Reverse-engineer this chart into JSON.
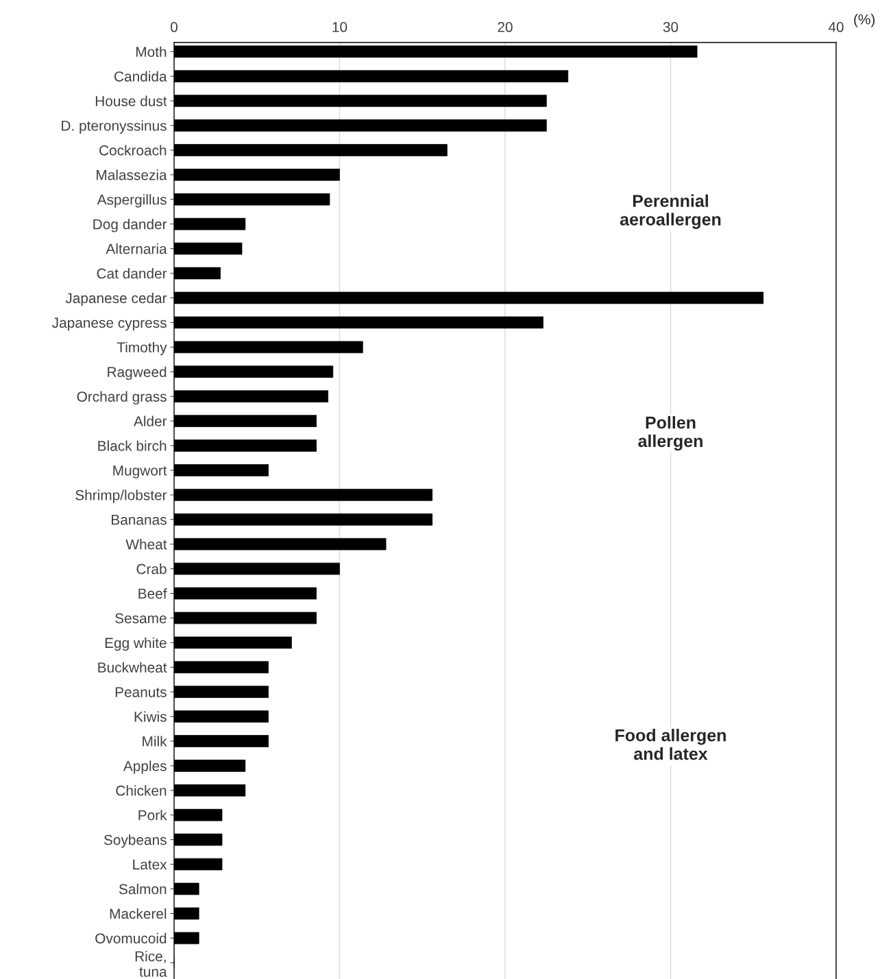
{
  "chart_data": {
    "type": "bar",
    "orientation": "horizontal",
    "xlabel": "(%)",
    "categories": [
      "Moth",
      "Candida",
      "House dust",
      "D. pteronyssinus",
      "Cockroach",
      "Malassezia",
      "Aspergillus",
      "Dog dander",
      "Alternaria",
      "Cat dander",
      "Japanese cedar",
      "Japanese cypress",
      "Timothy",
      "Ragweed",
      "Orchard grass",
      "Alder",
      "Black birch",
      "Mugwort",
      "Shrimp/lobster",
      "Bananas",
      "Wheat",
      "Crab",
      "Beef",
      "Sesame",
      "Egg white",
      "Buckwheat",
      "Peanuts",
      "Kiwis",
      "Milk",
      "Apples",
      "Chicken",
      "Pork",
      "Soybeans",
      "Latex",
      "Salmon",
      "Mackerel",
      "Ovomucoid",
      "Rice,\ntuna"
    ],
    "values": [
      31.6,
      23.8,
      22.5,
      22.5,
      16.5,
      10.0,
      9.4,
      4.3,
      4.1,
      2.8,
      35.6,
      22.3,
      11.4,
      9.6,
      9.3,
      8.6,
      8.6,
      5.7,
      15.6,
      15.6,
      12.8,
      10.0,
      8.6,
      8.6,
      7.1,
      5.7,
      5.7,
      5.7,
      5.7,
      4.3,
      4.3,
      2.9,
      2.9,
      2.9,
      1.5,
      1.5,
      1.5,
      0
    ],
    "color": "#000000",
    "xlim": [
      0,
      40
    ],
    "xticks": [
      0,
      10,
      20,
      30,
      40
    ],
    "grid": "x",
    "annotations": [
      "Perennial\naeroallergen",
      "Pollen\nallergen",
      "Food allergen\nand latex"
    ]
  }
}
